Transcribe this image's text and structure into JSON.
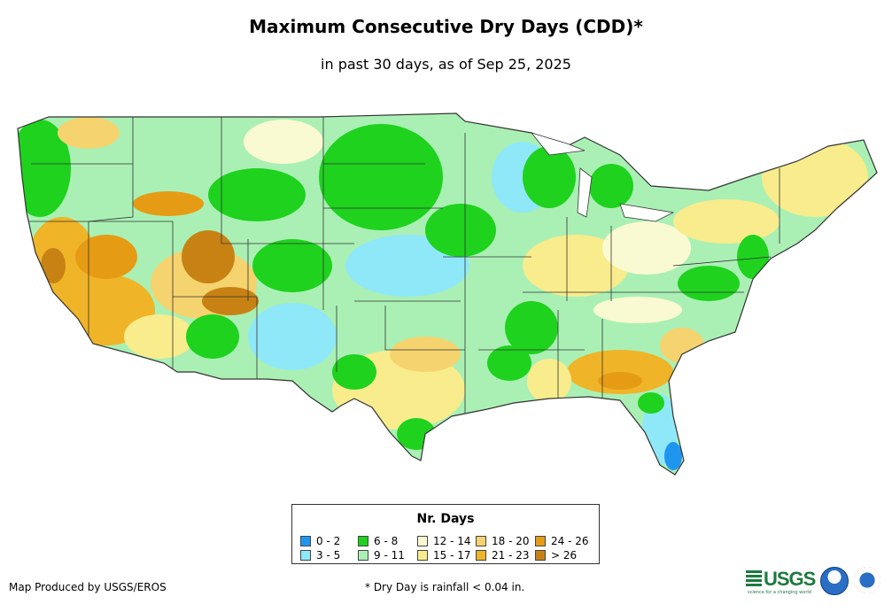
{
  "title": "Maximum Consecutive Dry Days (CDD)*",
  "subtitle": "in past 30 days, as of Sep 25, 2025",
  "legend": {
    "title": "Nr. Days",
    "items": [
      {
        "label": "0 - 2",
        "color": "#1e96f0"
      },
      {
        "label": "3 - 5",
        "color": "#8ee8f8"
      },
      {
        "label": "6 - 8",
        "color": "#1ed21e"
      },
      {
        "label": "9 - 11",
        "color": "#aaf0b4"
      },
      {
        "label": "12 - 14",
        "color": "#fafad2"
      },
      {
        "label": "15 - 17",
        "color": "#f8ec8c"
      },
      {
        "label": "18 - 20",
        "color": "#f5d36e"
      },
      {
        "label": "21 - 23",
        "color": "#f0b428"
      },
      {
        "label": "24 - 26",
        "color": "#e69b14"
      },
      {
        "label": "> 26",
        "color": "#c88214"
      }
    ]
  },
  "map": {
    "name": "Contiguous United States",
    "regions": [
      {
        "area": "Pacific Northwest coast",
        "class": "9 - 11"
      },
      {
        "area": "California and southern Nevada",
        "class": "21 - 23"
      },
      {
        "area": "Utah / Arizona plateau",
        "class": "24 - 26"
      },
      {
        "area": "Southern Idaho",
        "class": "24 - 26"
      },
      {
        "area": "Northern Plains",
        "class": "6 - 8"
      },
      {
        "area": "Kansas / Oklahoma",
        "class": "3 - 5"
      },
      {
        "area": "New Mexico / West Texas",
        "class": "3 - 5"
      },
      {
        "area": "Wisconsin / Minnesota",
        "class": "3 - 5"
      },
      {
        "area": "Ohio Valley",
        "class": "15 - 17"
      },
      {
        "area": "Northeast",
        "class": "15 - 17"
      },
      {
        "area": "Georgia / Alabama",
        "class": "21 - 23"
      },
      {
        "area": "South Florida",
        "class": "3 - 5"
      },
      {
        "area": "Florida tip",
        "class": "0 - 2"
      },
      {
        "area": "Texas",
        "class": "15 - 17"
      }
    ]
  },
  "producer": "Map Produced by USGS/EROS",
  "footnote": "* Dry Day is rainfall < 0.04 in.",
  "logos": {
    "usgs": "USGS",
    "usgs_tagline": "science for a changing world"
  }
}
